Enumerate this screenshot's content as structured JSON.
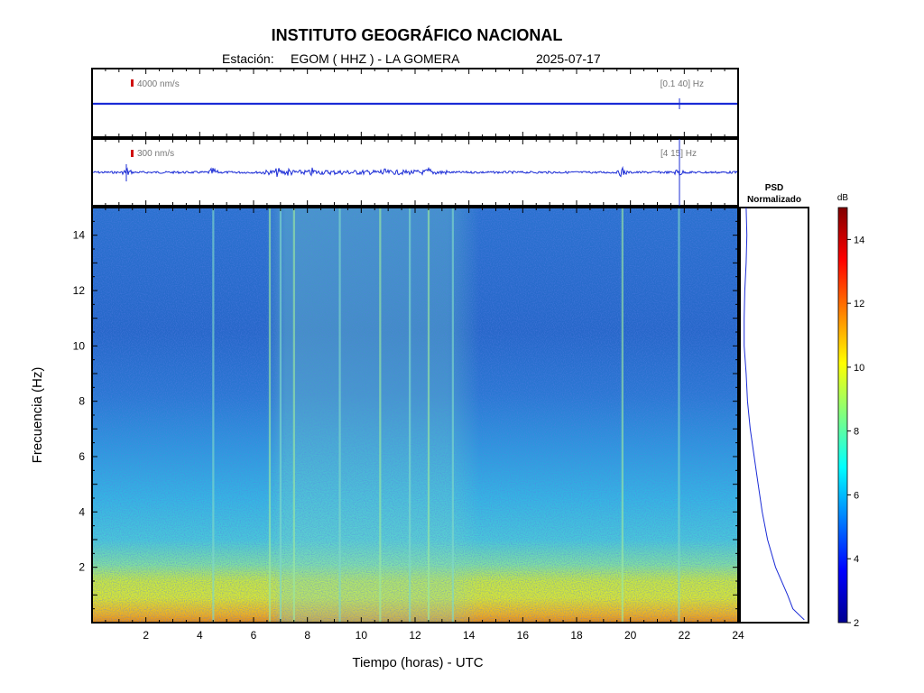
{
  "header": {
    "title": "INSTITUTO GEOGRÁFICO NACIONAL",
    "station_label": "Estación:",
    "station": "EGOM ( HHZ ) - LA GOMERA",
    "date": "2025-07-17"
  },
  "colors": {
    "trace": "#1a2bd6",
    "scale_marker": "#d01010",
    "frame": "#000000"
  },
  "chart_data": [
    {
      "type": "line",
      "name": "broadband-trace",
      "scale_label": "4000 nm/s",
      "band_label": "[0.1 40] Hz",
      "xlim": [
        0,
        24
      ],
      "events_hours": [
        21.8
      ]
    },
    {
      "type": "line",
      "name": "filtered-trace",
      "scale_label": "300 nm/s",
      "band_label": "[4 15] Hz",
      "xlim": [
        0,
        24
      ],
      "events_hours": [
        1.3,
        4.5,
        6.9,
        7.3,
        8.2,
        10.8,
        12.5,
        19.7,
        21.8
      ]
    },
    {
      "type": "heatmap",
      "xlabel": "Tiempo (horas) - UTC",
      "ylabel": "Frecuencia  (Hz)",
      "xlim": [
        0,
        24
      ],
      "ylim": [
        0,
        15
      ],
      "x_ticks": [
        "2",
        "4",
        "6",
        "8",
        "10",
        "12",
        "14",
        "16",
        "18",
        "20",
        "22",
        "24"
      ],
      "y_ticks": [
        "2",
        "4",
        "6",
        "8",
        "10",
        "12",
        "14"
      ],
      "colorbar": {
        "label": "dB",
        "range": [
          2,
          15
        ],
        "ticks": [
          "2",
          "4",
          "6",
          "8",
          "10",
          "12",
          "14"
        ]
      },
      "vertical_lines_hours": [
        4.5,
        6.6,
        7.0,
        7.5,
        9.2,
        10.7,
        11.8,
        12.5,
        13.4,
        19.7,
        21.8
      ]
    },
    {
      "type": "line",
      "title": "PSD",
      "subtitle": "Normalizado",
      "freq_hz": [
        0.1,
        0.5,
        1,
        2,
        3,
        4,
        5,
        6,
        7,
        8,
        9,
        10,
        11,
        12,
        13,
        14,
        15
      ],
      "psd_norm": [
        0.95,
        0.78,
        0.7,
        0.52,
        0.4,
        0.32,
        0.26,
        0.2,
        0.14,
        0.1,
        0.08,
        0.05,
        0.05,
        0.06,
        0.08,
        0.09,
        0.08
      ]
    }
  ]
}
